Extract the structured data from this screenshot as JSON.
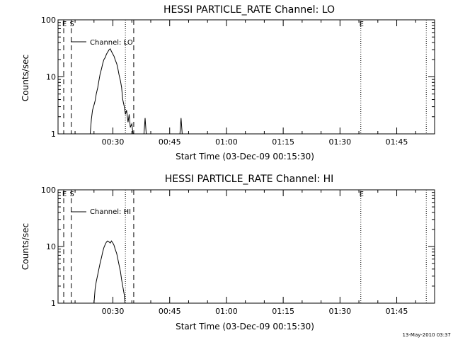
{
  "footer_timestamp": "13-May-2010 03:37",
  "chart_data": [
    {
      "type": "line",
      "title": "HESSI PARTICLE_RATE Channel: LO",
      "xlabel": "Start Time (03-Dec-09 00:15:30)",
      "ylabel": "Counts/sec",
      "x_unit": "minutes after 00:00 UT, 03-Dec-09",
      "xlim": [
        15.5,
        115
      ],
      "ylim": [
        1,
        100
      ],
      "yscale": "log",
      "x_ticks": [
        30,
        45,
        60,
        75,
        90,
        105
      ],
      "x_tick_labels": [
        "00:30",
        "00:45",
        "01:00",
        "01:15",
        "01:30",
        "01:45"
      ],
      "y_ticks": [
        1,
        10,
        100
      ],
      "y_tick_labels": [
        "1",
        "10",
        "100"
      ],
      "legend": {
        "position": "top-left",
        "label": "Channel: LO"
      },
      "grid": false,
      "markers": [
        {
          "x": 17.0,
          "style": "dashed",
          "label": "E"
        },
        {
          "x": 19.0,
          "style": "dashed",
          "label": "S"
        },
        {
          "x": 33.3,
          "style": "dotted",
          "label": ""
        },
        {
          "x": 35.5,
          "style": "dashed",
          "label": ""
        },
        {
          "x": 95.5,
          "style": "dotted",
          "label": "E"
        },
        {
          "x": 112.8,
          "style": "dotted",
          "label": ""
        }
      ],
      "series": [
        {
          "name": "Channel: LO",
          "color": "#000000",
          "x": [
            24.0,
            24.3,
            24.6,
            25.0,
            25.3,
            25.6,
            26.0,
            26.3,
            26.6,
            27.0,
            27.3,
            27.6,
            28.0,
            28.3,
            28.6,
            29.0,
            29.3,
            29.6,
            30.0,
            30.3,
            30.6,
            31.0,
            31.3,
            31.6,
            32.0,
            32.3,
            32.6,
            33.0,
            33.3,
            33.6,
            34.0,
            34.3,
            34.6,
            35.0,
            35.3
          ],
          "y": [
            1.0,
            1.8,
            2.6,
            3.2,
            3.8,
            5.0,
            6.5,
            8.5,
            11.0,
            14.0,
            17.0,
            20.0,
            22.0,
            25.0,
            27.0,
            30.0,
            31.0,
            28.0,
            25.0,
            23.0,
            20.0,
            17.0,
            14.0,
            11.0,
            8.5,
            6.5,
            4.0,
            3.0,
            2.2,
            2.6,
            1.6,
            2.2,
            1.3,
            1.5,
            1.0
          ]
        },
        {
          "name": "Channel: LO spike 1",
          "color": "#000000",
          "x": [
            38.2,
            38.5,
            38.8
          ],
          "y": [
            1.0,
            1.9,
            1.0
          ]
        },
        {
          "name": "Channel: LO spike 2",
          "color": "#000000",
          "x": [
            47.7,
            48.0,
            48.3
          ],
          "y": [
            1.0,
            1.9,
            1.0
          ]
        }
      ]
    },
    {
      "type": "line",
      "title": "HESSI PARTICLE_RATE Channel: HI",
      "xlabel": "Start Time (03-Dec-09 00:15:30)",
      "ylabel": "Counts/sec",
      "x_unit": "minutes after 00:00 UT, 03-Dec-09",
      "xlim": [
        15.5,
        115
      ],
      "ylim": [
        1,
        100
      ],
      "yscale": "log",
      "x_ticks": [
        30,
        45,
        60,
        75,
        90,
        105
      ],
      "x_tick_labels": [
        "00:30",
        "00:45",
        "01:00",
        "01:15",
        "01:30",
        "01:45"
      ],
      "y_ticks": [
        1,
        10,
        100
      ],
      "y_tick_labels": [
        "1",
        "10",
        "100"
      ],
      "legend": {
        "position": "top-left",
        "label": "Channel: HI"
      },
      "grid": false,
      "markers": [
        {
          "x": 17.0,
          "style": "dashed",
          "label": "E"
        },
        {
          "x": 19.0,
          "style": "dashed",
          "label": "S"
        },
        {
          "x": 33.3,
          "style": "dotted",
          "label": ""
        },
        {
          "x": 35.5,
          "style": "dashed",
          "label": ""
        },
        {
          "x": 95.5,
          "style": "dotted",
          "label": "E"
        },
        {
          "x": 112.8,
          "style": "dotted",
          "label": ""
        }
      ],
      "series": [
        {
          "name": "Channel: HI",
          "color": "#000000",
          "x": [
            25.0,
            25.3,
            25.6,
            26.0,
            26.3,
            26.6,
            27.0,
            27.3,
            27.6,
            28.0,
            28.3,
            28.6,
            29.0,
            29.3,
            29.6,
            30.0,
            30.3,
            30.6,
            31.0,
            31.3,
            31.6,
            32.0,
            32.3,
            32.6,
            33.0,
            33.2
          ],
          "y": [
            1.0,
            1.8,
            2.4,
            3.2,
            4.0,
            5.0,
            6.5,
            8.0,
            9.5,
            11.0,
            12.0,
            12.5,
            12.0,
            11.5,
            12.5,
            11.5,
            10.5,
            9.0,
            7.5,
            6.0,
            4.8,
            3.6,
            2.6,
            2.0,
            1.4,
            1.0
          ]
        }
      ]
    }
  ]
}
